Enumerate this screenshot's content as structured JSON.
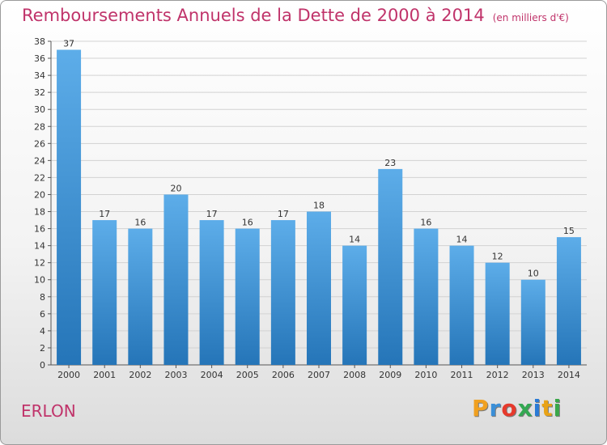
{
  "header": {
    "title": "Remboursements Annuels de la Dette de 2000 à 2014",
    "unit": "(en milliers d'€)"
  },
  "footer": {
    "commune": "ERLON",
    "logo_text": "Proxiti",
    "logo_colors": [
      "#f0a020",
      "#3a8fd8",
      "#e63a2c",
      "#33a852",
      "#2a7bd6",
      "#e8a317",
      "#3aa84a"
    ]
  },
  "colors": {
    "title": "#c0336a",
    "bar_top": "#5dade9",
    "bar_bottom": "#2575b8",
    "grid": "#d2d2d2"
  },
  "chart_data": {
    "type": "bar",
    "title": "Remboursements Annuels de la Dette de 2000 à 2014",
    "subtitle": "(en milliers d'€)",
    "categories": [
      "2000",
      "2001",
      "2002",
      "2003",
      "2004",
      "2005",
      "2006",
      "2007",
      "2008",
      "2009",
      "2010",
      "2011",
      "2012",
      "2013",
      "2014"
    ],
    "values": [
      37,
      17,
      16,
      20,
      17,
      16,
      17,
      18,
      14,
      23,
      16,
      14,
      12,
      10,
      15
    ],
    "ylim": [
      0,
      38
    ],
    "ytick_step": 2,
    "grid": true,
    "data_labels": true
  }
}
